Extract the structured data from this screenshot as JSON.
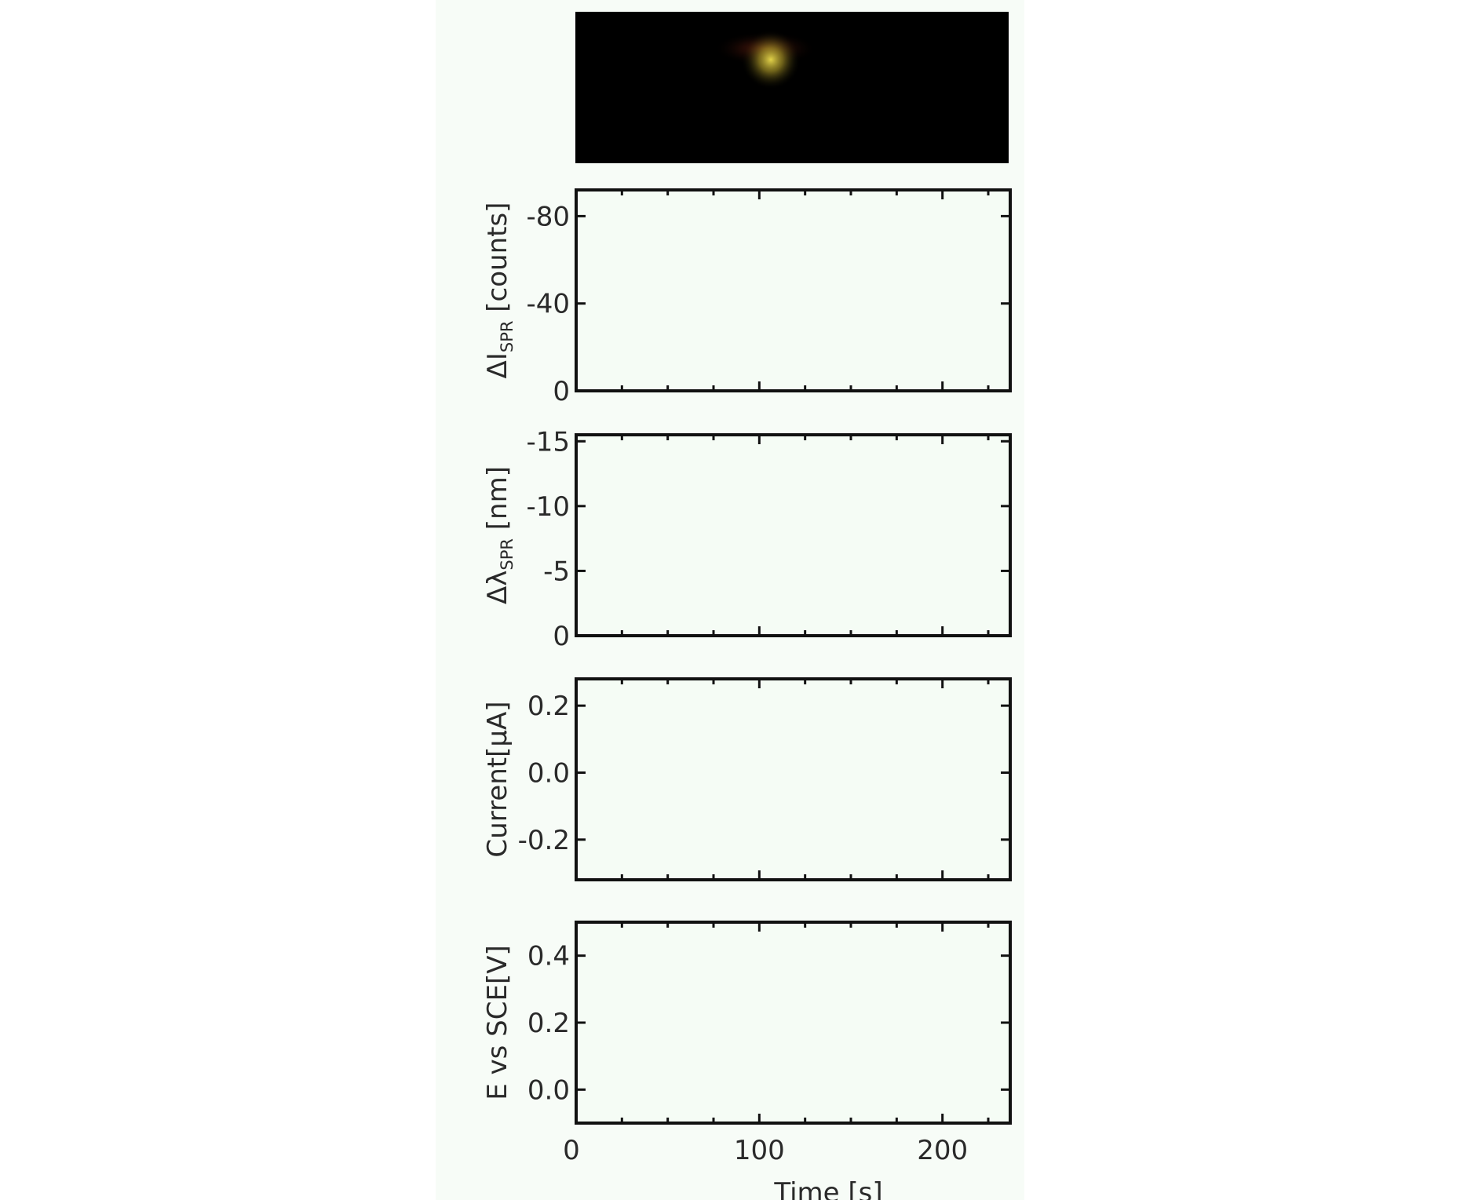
{
  "colors": {
    "panel_background": "#f5fcf5",
    "axes_line": "#111111",
    "camera_image_background": "#000000",
    "bright_spot": "#c8b43a",
    "red_glow": "#6b1d10",
    "text": "#2a2a2a"
  },
  "camera_image": {
    "description_icon": "dark-field-image"
  },
  "chart_data": [
    {
      "type": "line",
      "ylabel": "ΔI",
      "ylabel_subscript": "SPR",
      "ylabel_unit": " [counts]",
      "ylim": [
        0,
        -92
      ],
      "yticks": [
        -80,
        -40,
        0
      ],
      "ytick_labels": [
        "-80",
        "-40",
        "0"
      ],
      "xlim": [
        0,
        237
      ],
      "series": []
    },
    {
      "type": "line",
      "ylabel": "Δλ",
      "ylabel_subscript": "SPR",
      "ylabel_unit": " [nm]",
      "ylim": [
        0,
        -15.5
      ],
      "yticks": [
        -15,
        -10,
        -5,
        0
      ],
      "ytick_labels": [
        "-15",
        "-10",
        "-5",
        "0"
      ],
      "xlim": [
        0,
        237
      ],
      "series": []
    },
    {
      "type": "line",
      "ylabel": "Current[μA]",
      "ylim": [
        -0.32,
        0.28
      ],
      "yticks": [
        0.2,
        0.0,
        -0.2
      ],
      "ytick_labels": [
        "0.2",
        "0.0",
        "-0.2"
      ],
      "xlim": [
        0,
        237
      ],
      "series": []
    },
    {
      "type": "line",
      "ylabel": "E vs SCE[V]",
      "ylim": [
        -0.1,
        0.5
      ],
      "yticks": [
        0.4,
        0.2,
        0.0
      ],
      "ytick_labels": [
        "0.4",
        "0.2",
        "0.0"
      ],
      "xlim": [
        0,
        237
      ],
      "xticks": [
        0,
        100,
        200
      ],
      "xtick_labels": [
        "0",
        "100",
        "200"
      ],
      "xlabel": "Time [s]",
      "series": []
    }
  ]
}
